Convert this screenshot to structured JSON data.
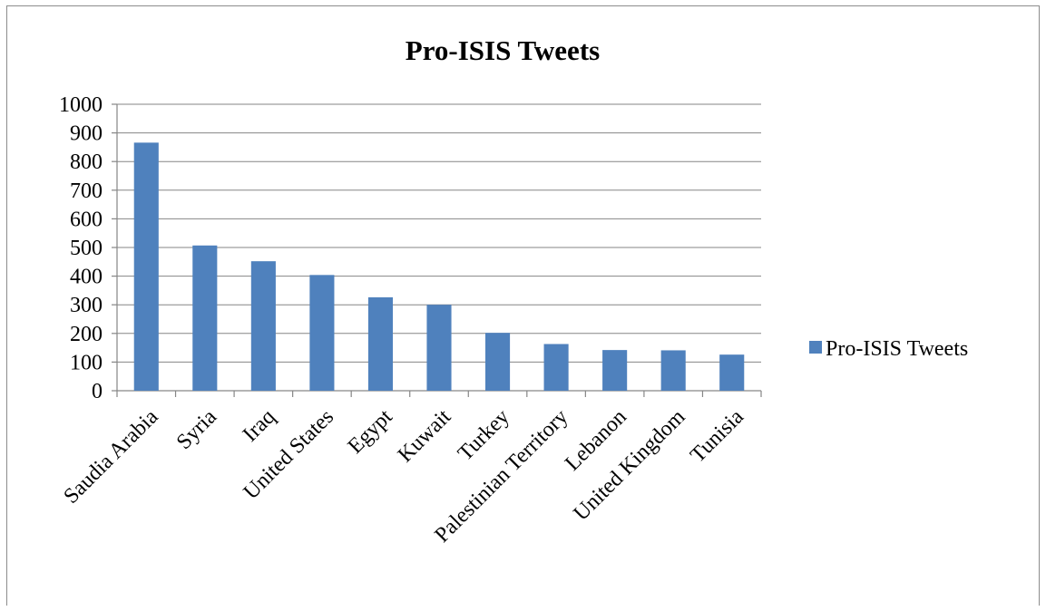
{
  "chart_data": {
    "type": "bar",
    "title": "Pro-ISIS Tweets",
    "xlabel": "",
    "ylabel": "",
    "categories": [
      "Saudia Arabia",
      "Syria",
      "Iraq",
      "United States",
      "Egypt",
      "Kuwait",
      "Turkey",
      "Palestinian Territory",
      "Lebanon",
      "United Kingdom",
      "Tunisia"
    ],
    "series": [
      {
        "name": "Pro-ISIS Tweets",
        "values": [
          866,
          507,
          452,
          404,
          326,
          300,
          202,
          163,
          142,
          141,
          126
        ],
        "color": "#4f81bd"
      }
    ],
    "ylim": [
      0,
      1000
    ],
    "yticks": [
      "0",
      "100",
      "200",
      "300",
      "400",
      "500",
      "600",
      "700",
      "800",
      "900",
      "1000"
    ],
    "grid": true,
    "legend_position": "right"
  }
}
